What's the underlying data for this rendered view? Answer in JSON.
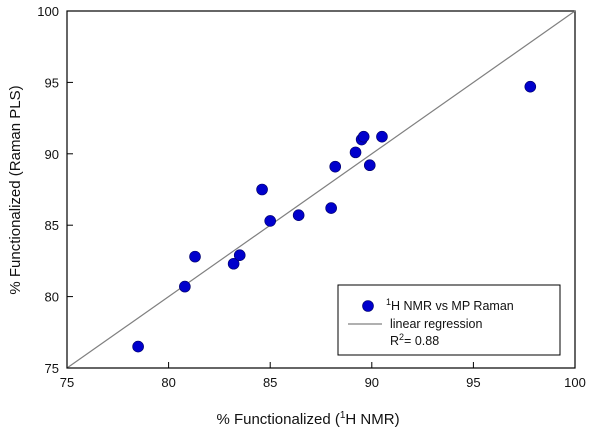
{
  "chart_data": {
    "type": "scatter",
    "title": "",
    "xlabel_prefix": "% Functionalized  (",
    "xlabel_sup": "1",
    "xlabel_suffix": "H NMR)",
    "ylabel": "% Functionalized  (Raman PLS)",
    "xlim": [
      75,
      100
    ],
    "ylim": [
      75,
      100
    ],
    "xticks": [
      75,
      80,
      85,
      90,
      95,
      100
    ],
    "yticks": [
      75,
      80,
      85,
      90,
      95,
      100
    ],
    "grid": false,
    "legend_position": "bottom-right",
    "series": [
      {
        "name_sup": "1",
        "name_main": "H NMR vs MP Raman",
        "color": "#0000cc",
        "points": [
          {
            "x": 78.5,
            "y": 76.5
          },
          {
            "x": 80.8,
            "y": 80.7
          },
          {
            "x": 81.3,
            "y": 82.8
          },
          {
            "x": 83.2,
            "y": 82.3
          },
          {
            "x": 83.5,
            "y": 82.9
          },
          {
            "x": 84.6,
            "y": 87.5
          },
          {
            "x": 85.0,
            "y": 85.3
          },
          {
            "x": 86.4,
            "y": 85.7
          },
          {
            "x": 88.0,
            "y": 86.2
          },
          {
            "x": 88.2,
            "y": 89.1
          },
          {
            "x": 89.2,
            "y": 90.1
          },
          {
            "x": 89.5,
            "y": 91.0
          },
          {
            "x": 89.6,
            "y": 91.2
          },
          {
            "x": 89.9,
            "y": 89.2
          },
          {
            "x": 90.5,
            "y": 91.2
          },
          {
            "x": 97.8,
            "y": 94.7
          }
        ]
      }
    ],
    "regression": {
      "label": "linear regression",
      "line": [
        [
          75,
          75
        ],
        [
          100,
          100
        ]
      ],
      "color": "#808080"
    },
    "r2_prefix": "R",
    "r2_sup": "2",
    "r2_value": "= 0.88"
  }
}
